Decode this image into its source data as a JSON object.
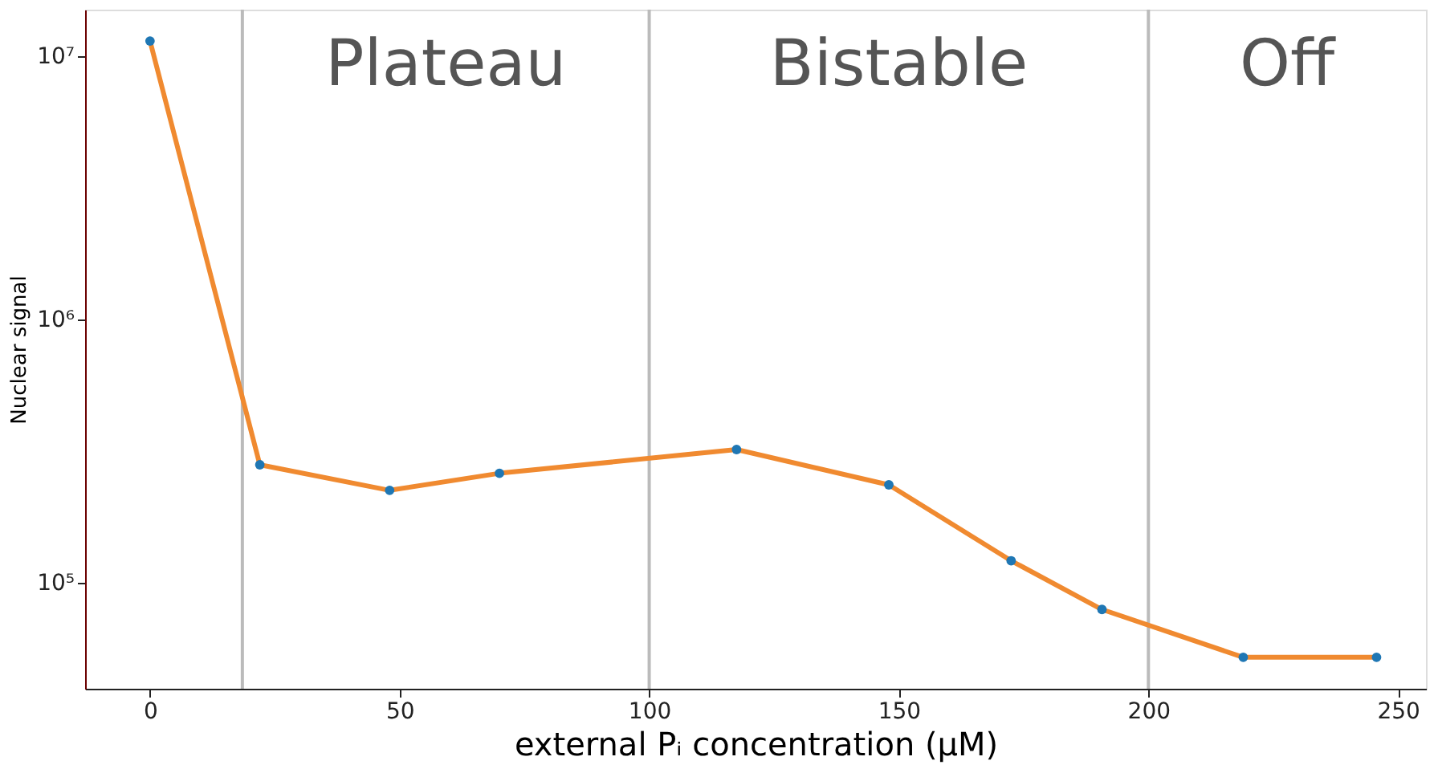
{
  "chart_data": {
    "type": "line",
    "xlabel": "external Pᵢ concentration (μM)",
    "ylabel": "Nuclear signal",
    "log": "y",
    "grid": false,
    "x": [
      0,
      22,
      48,
      70,
      117.5,
      148,
      172.5,
      190.7,
      219,
      245.7
    ],
    "series": [
      {
        "color": "#f08a30",
        "marker": "none",
        "values": [
          11400000,
          280000,
          224000,
          260000,
          320000,
          235000,
          121000,
          79000,
          52000,
          52000
        ]
      },
      {
        "type": "scatter",
        "color": "#1f77b4",
        "marker": "circle",
        "values": [
          11400000,
          280000,
          224000,
          260000,
          320000,
          235000,
          121000,
          79000,
          52000,
          52000
        ]
      }
    ],
    "xlim": [
      -13,
      255.6
    ],
    "xticks": [
      0,
      50,
      100,
      150,
      200,
      250
    ],
    "ylim": [
      39500,
      15000000
    ],
    "yticks": [
      {
        "value": 100000,
        "label": "10⁵"
      },
      {
        "value": 1000000,
        "label": "10⁶"
      },
      {
        "value": 10000000,
        "label": "10⁷"
      }
    ],
    "ref_lines": [
      {
        "axis": "x",
        "value": 18.5,
        "color": "#bbbbbb"
      },
      {
        "axis": "x",
        "value": 100,
        "color": "#bbbbbb"
      },
      {
        "axis": "x",
        "value": 200,
        "color": "#bbbbbb"
      }
    ],
    "annotations": [
      "Plateau",
      "Bistable",
      "Off"
    ]
  }
}
